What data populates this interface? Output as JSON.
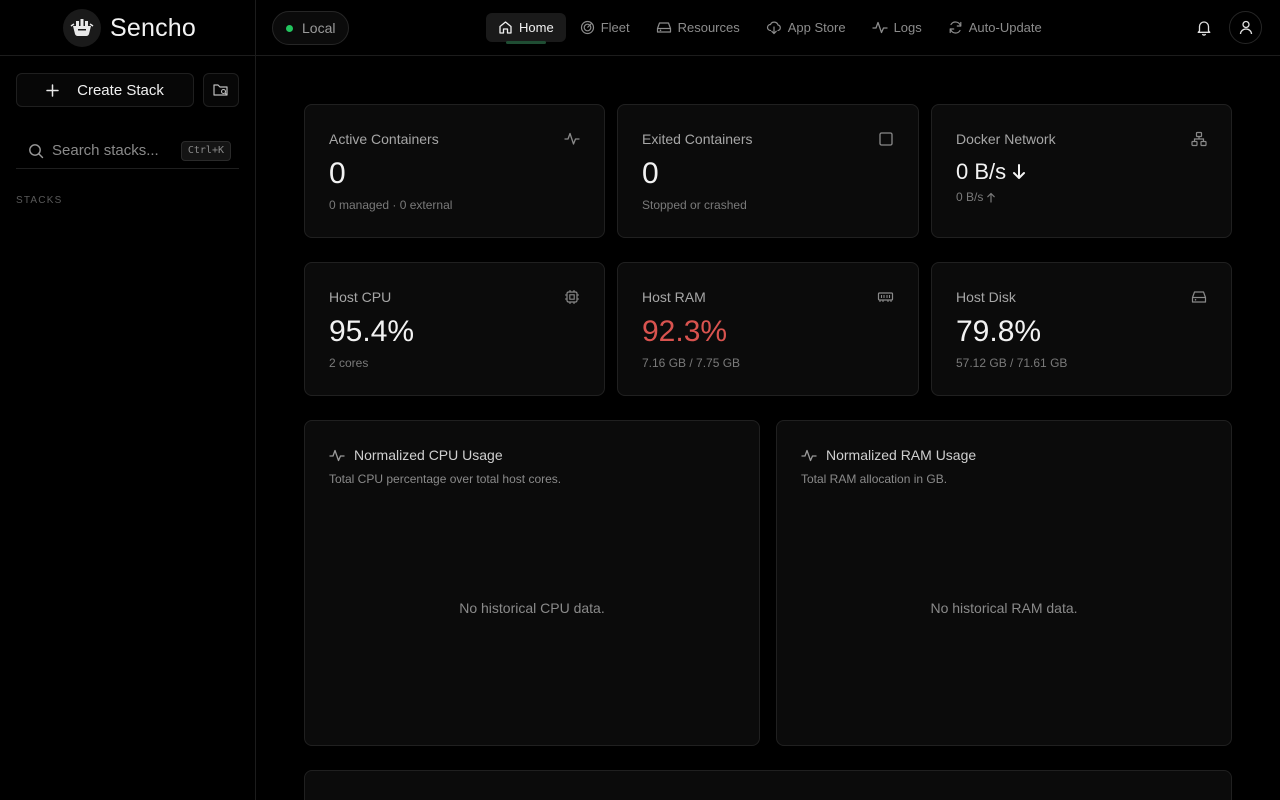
{
  "app": {
    "name": "Sencho"
  },
  "sidebar": {
    "create_label": "Create Stack",
    "search_placeholder": "Search stacks...",
    "search_shortcut": "Ctrl+K",
    "section_label": "STACKS"
  },
  "topbar": {
    "environment": "Local",
    "environment_status_color": "#22c55e",
    "nav": [
      {
        "label": "Home",
        "icon": "home-icon"
      },
      {
        "label": "Fleet",
        "icon": "radar-icon"
      },
      {
        "label": "Resources",
        "icon": "hard-drive-icon"
      },
      {
        "label": "App Store",
        "icon": "cloud-download-icon"
      },
      {
        "label": "Logs",
        "icon": "activity-icon"
      },
      {
        "label": "Auto-Update",
        "icon": "refresh-icon"
      }
    ]
  },
  "stats": {
    "active": {
      "label": "Active Containers",
      "value": "0",
      "sub": "0 managed · 0 external"
    },
    "exited": {
      "label": "Exited Containers",
      "value": "0",
      "sub": "Stopped or crashed"
    },
    "network": {
      "label": "Docker Network",
      "value": "0 B/s",
      "sub": "0 B/s"
    },
    "cpu": {
      "label": "Host CPU",
      "value": "95.4%",
      "sub": "2 cores"
    },
    "ram": {
      "label": "Host RAM",
      "value": "92.3%",
      "sub": "7.16 GB / 7.75 GB",
      "value_color": "#d9534f"
    },
    "disk": {
      "label": "Host Disk",
      "value": "79.8%",
      "sub": "57.12 GB / 71.61 GB"
    }
  },
  "charts": {
    "cpu": {
      "title": "Normalized CPU Usage",
      "desc": "Total CPU percentage over total host cores.",
      "empty": "No historical CPU data."
    },
    "ram": {
      "title": "Normalized RAM Usage",
      "desc": "Total RAM allocation in GB.",
      "empty": "No historical RAM data."
    }
  }
}
